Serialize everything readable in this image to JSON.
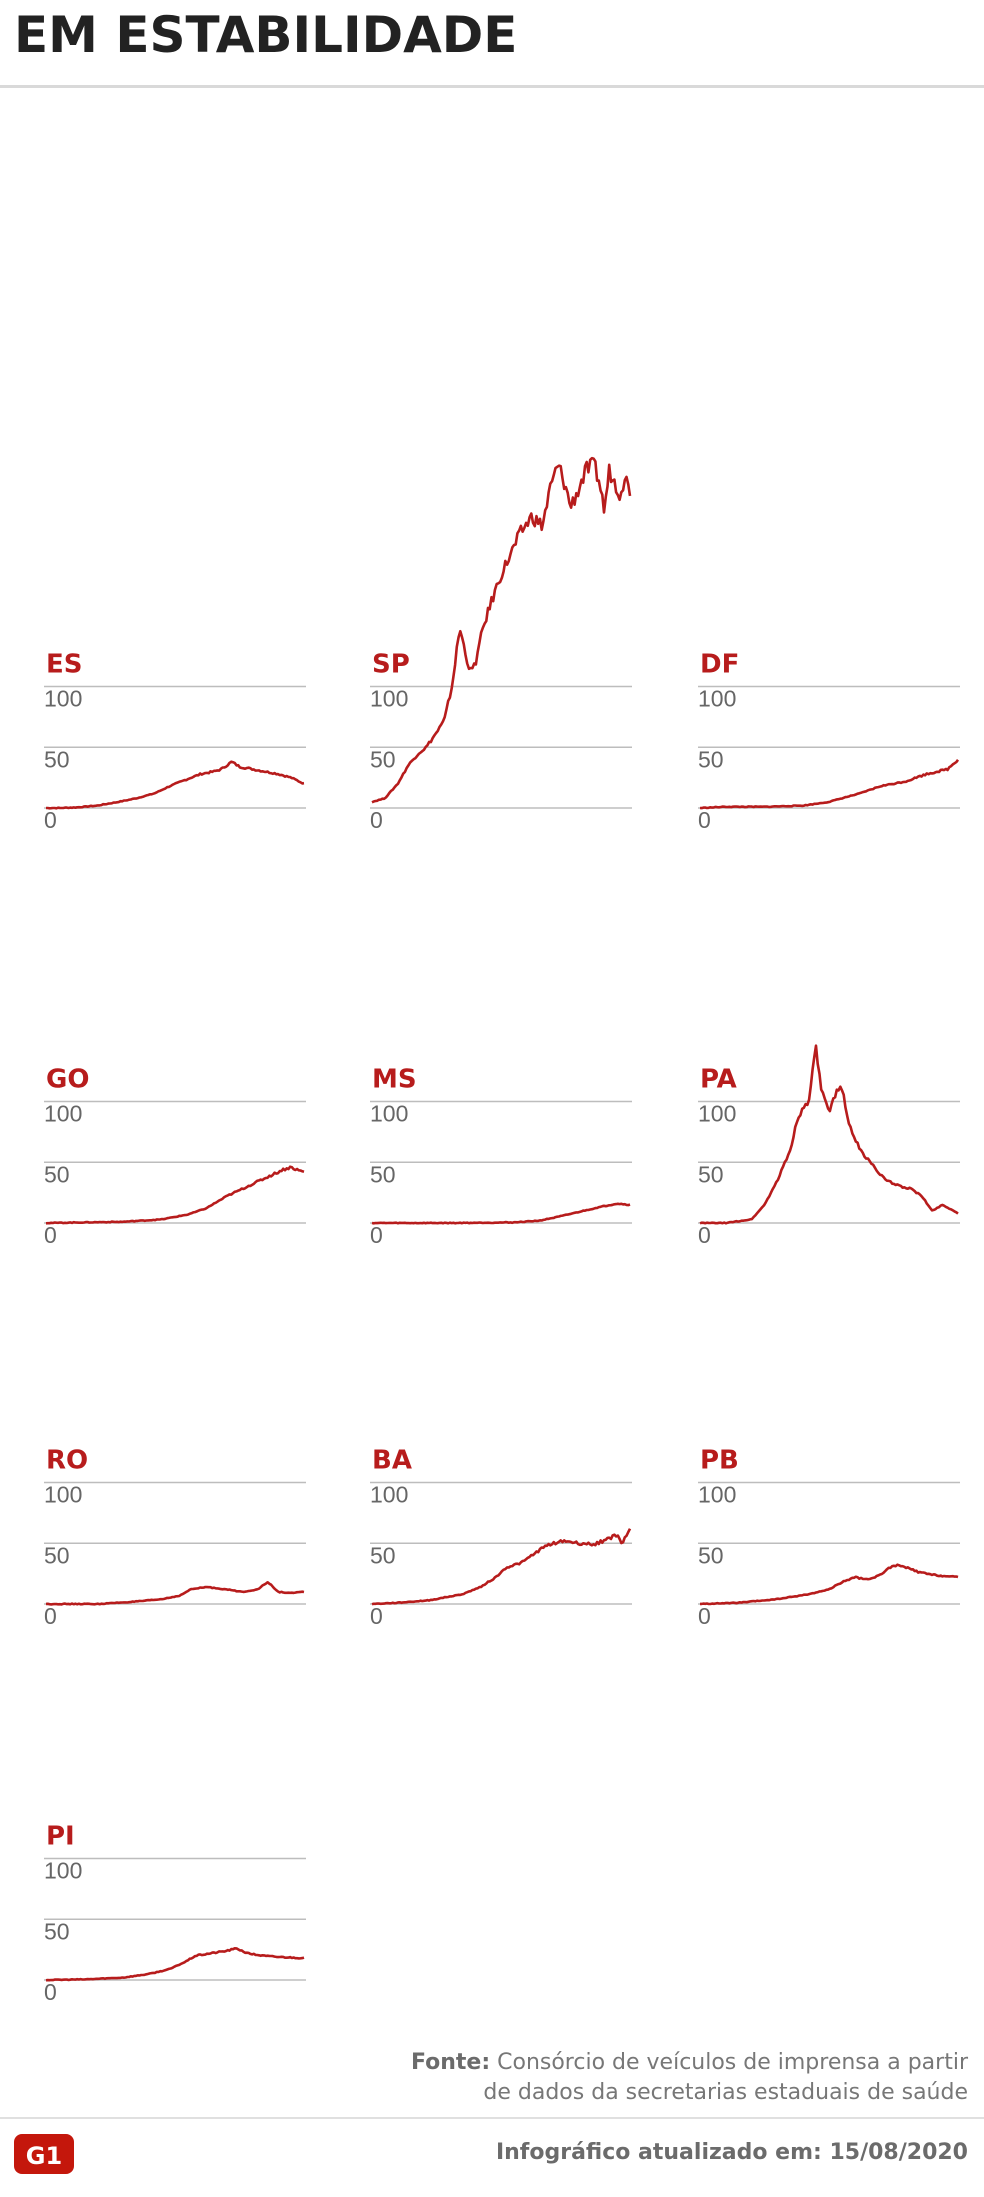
{
  "title": "EM ESTABILIDADE",
  "colors": {
    "line": "#b71c1c",
    "label": "#b71c1c",
    "grid": "#bdbdbd",
    "title": "#222222"
  },
  "chart_data": [
    {
      "type": "line",
      "title": "ES",
      "ylim": [
        0,
        100
      ],
      "yticks": [
        "100",
        "50",
        "0"
      ],
      "anchors": [
        [
          0,
          0
        ],
        [
          0.05,
          0
        ],
        [
          0.12,
          0.5
        ],
        [
          0.2,
          2
        ],
        [
          0.28,
          5
        ],
        [
          0.35,
          8
        ],
        [
          0.42,
          12
        ],
        [
          0.48,
          18
        ],
        [
          0.55,
          24
        ],
        [
          0.6,
          28
        ],
        [
          0.65,
          30
        ],
        [
          0.68,
          32
        ],
        [
          0.72,
          38
        ],
        [
          0.75,
          34
        ],
        [
          0.8,
          32
        ],
        [
          0.85,
          30
        ],
        [
          0.9,
          28
        ],
        [
          0.95,
          25
        ],
        [
          1,
          20
        ]
      ]
    },
    {
      "type": "line",
      "title": "SP",
      "ylim": [
        0,
        100
      ],
      "yticks": [
        "100",
        "50",
        "0"
      ],
      "anchors": [
        [
          0,
          5
        ],
        [
          0.05,
          8
        ],
        [
          0.1,
          20
        ],
        [
          0.14,
          35
        ],
        [
          0.18,
          45
        ],
        [
          0.21,
          50
        ],
        [
          0.25,
          62
        ],
        [
          0.28,
          72
        ],
        [
          0.31,
          100
        ],
        [
          0.34,
          148
        ],
        [
          0.36,
          130
        ],
        [
          0.38,
          112
        ],
        [
          0.4,
          118
        ],
        [
          0.43,
          148
        ],
        [
          0.46,
          168
        ],
        [
          0.5,
          192
        ],
        [
          0.54,
          210
        ],
        [
          0.58,
          228
        ],
        [
          0.62,
          240
        ],
        [
          0.66,
          232
        ],
        [
          0.69,
          262
        ],
        [
          0.72,
          282
        ],
        [
          0.74,
          272
        ],
        [
          0.77,
          248
        ],
        [
          0.8,
          262
        ],
        [
          0.83,
          278
        ],
        [
          0.86,
          282
        ],
        [
          0.88,
          270
        ],
        [
          0.9,
          245
        ],
        [
          0.92,
          278
        ],
        [
          0.94,
          268
        ],
        [
          0.96,
          260
        ],
        [
          0.98,
          272
        ],
        [
          1,
          262
        ]
      ]
    },
    {
      "type": "line",
      "title": "DF",
      "ylim": [
        0,
        100
      ],
      "yticks": [
        "100",
        "50",
        "0"
      ],
      "anchors": [
        [
          0,
          0
        ],
        [
          0.1,
          1
        ],
        [
          0.25,
          1
        ],
        [
          0.4,
          2
        ],
        [
          0.5,
          5
        ],
        [
          0.55,
          8
        ],
        [
          0.62,
          12
        ],
        [
          0.7,
          18
        ],
        [
          0.75,
          20
        ],
        [
          0.8,
          22
        ],
        [
          0.85,
          26
        ],
        [
          0.88,
          28
        ],
        [
          0.92,
          30
        ],
        [
          0.96,
          32
        ],
        [
          1,
          40
        ]
      ]
    },
    {
      "type": "line",
      "title": "GO",
      "ylim": [
        0,
        100
      ],
      "yticks": [
        "100",
        "50",
        "0"
      ],
      "anchors": [
        [
          0,
          0
        ],
        [
          0.15,
          0.5
        ],
        [
          0.3,
          1
        ],
        [
          0.45,
          3
        ],
        [
          0.55,
          7
        ],
        [
          0.62,
          12
        ],
        [
          0.7,
          22
        ],
        [
          0.78,
          30
        ],
        [
          0.84,
          36
        ],
        [
          0.88,
          40
        ],
        [
          0.92,
          44
        ],
        [
          0.95,
          46
        ],
        [
          0.97,
          44
        ],
        [
          1,
          42
        ]
      ]
    },
    {
      "type": "line",
      "title": "MS",
      "ylim": [
        0,
        100
      ],
      "yticks": [
        "100",
        "50",
        "0"
      ],
      "anchors": [
        [
          0,
          0
        ],
        [
          0.3,
          0
        ],
        [
          0.55,
          0.5
        ],
        [
          0.65,
          2
        ],
        [
          0.72,
          5
        ],
        [
          0.8,
          9
        ],
        [
          0.88,
          13
        ],
        [
          0.95,
          16
        ],
        [
          1,
          15
        ]
      ]
    },
    {
      "type": "line",
      "title": "PA",
      "ylim": [
        0,
        100
      ],
      "yticks": [
        "100",
        "50",
        "0"
      ],
      "anchors": [
        [
          0,
          0
        ],
        [
          0.1,
          0
        ],
        [
          0.2,
          3
        ],
        [
          0.25,
          15
        ],
        [
          0.3,
          35
        ],
        [
          0.35,
          60
        ],
        [
          0.38,
          88
        ],
        [
          0.42,
          100
        ],
        [
          0.44,
          130
        ],
        [
          0.45,
          143
        ],
        [
          0.47,
          110
        ],
        [
          0.5,
          90
        ],
        [
          0.53,
          108
        ],
        [
          0.55,
          112
        ],
        [
          0.58,
          80
        ],
        [
          0.62,
          60
        ],
        [
          0.68,
          45
        ],
        [
          0.72,
          35
        ],
        [
          0.78,
          30
        ],
        [
          0.82,
          28
        ],
        [
          0.86,
          22
        ],
        [
          0.9,
          10
        ],
        [
          0.94,
          15
        ],
        [
          1,
          8
        ]
      ]
    },
    {
      "type": "line",
      "title": "RO",
      "ylim": [
        0,
        100
      ],
      "yticks": [
        "100",
        "50",
        "0"
      ],
      "anchors": [
        [
          0,
          0
        ],
        [
          0.2,
          0
        ],
        [
          0.35,
          2
        ],
        [
          0.45,
          4
        ],
        [
          0.52,
          7
        ],
        [
          0.56,
          12
        ],
        [
          0.62,
          14
        ],
        [
          0.7,
          12
        ],
        [
          0.76,
          10
        ],
        [
          0.82,
          12
        ],
        [
          0.86,
          18
        ],
        [
          0.9,
          10
        ],
        [
          0.95,
          9
        ],
        [
          1,
          10
        ]
      ]
    },
    {
      "type": "line",
      "title": "BA",
      "ylim": [
        0,
        100
      ],
      "yticks": [
        "100",
        "50",
        "0"
      ],
      "anchors": [
        [
          0,
          0
        ],
        [
          0.1,
          1
        ],
        [
          0.22,
          3
        ],
        [
          0.35,
          8
        ],
        [
          0.42,
          14
        ],
        [
          0.48,
          22
        ],
        [
          0.52,
          30
        ],
        [
          0.58,
          34
        ],
        [
          0.62,
          40
        ],
        [
          0.66,
          46
        ],
        [
          0.7,
          50
        ],
        [
          0.75,
          52
        ],
        [
          0.8,
          50
        ],
        [
          0.86,
          49
        ],
        [
          0.92,
          54
        ],
        [
          0.95,
          57
        ],
        [
          0.97,
          50
        ],
        [
          1,
          62
        ]
      ]
    },
    {
      "type": "line",
      "title": "PB",
      "ylim": [
        0,
        100
      ],
      "yticks": [
        "100",
        "50",
        "0"
      ],
      "anchors": [
        [
          0,
          0
        ],
        [
          0.15,
          1
        ],
        [
          0.3,
          4
        ],
        [
          0.42,
          8
        ],
        [
          0.5,
          12
        ],
        [
          0.55,
          18
        ],
        [
          0.6,
          22
        ],
        [
          0.65,
          20
        ],
        [
          0.7,
          24
        ],
        [
          0.72,
          28
        ],
        [
          0.76,
          32
        ],
        [
          0.8,
          30
        ],
        [
          0.85,
          26
        ],
        [
          0.9,
          24
        ],
        [
          1,
          22
        ]
      ]
    },
    {
      "type": "line",
      "title": "PI",
      "ylim": [
        0,
        100
      ],
      "yticks": [
        "100",
        "50",
        "0"
      ],
      "anchors": [
        [
          0,
          0
        ],
        [
          0.15,
          0.5
        ],
        [
          0.3,
          2
        ],
        [
          0.4,
          5
        ],
        [
          0.48,
          9
        ],
        [
          0.54,
          15
        ],
        [
          0.58,
          20
        ],
        [
          0.64,
          22
        ],
        [
          0.7,
          24
        ],
        [
          0.74,
          26
        ],
        [
          0.78,
          22
        ],
        [
          0.84,
          20
        ],
        [
          0.9,
          19
        ],
        [
          1,
          18
        ]
      ]
    }
  ],
  "footer": {
    "source_label": "Fonte:",
    "source_line1": "Consórcio de veículos de imprensa a partir",
    "source_line2": "de dados da secretarias estaduais de saúde",
    "updated": "Infográfico atualizado em: 15/08/2020",
    "logo_text": "G1"
  }
}
